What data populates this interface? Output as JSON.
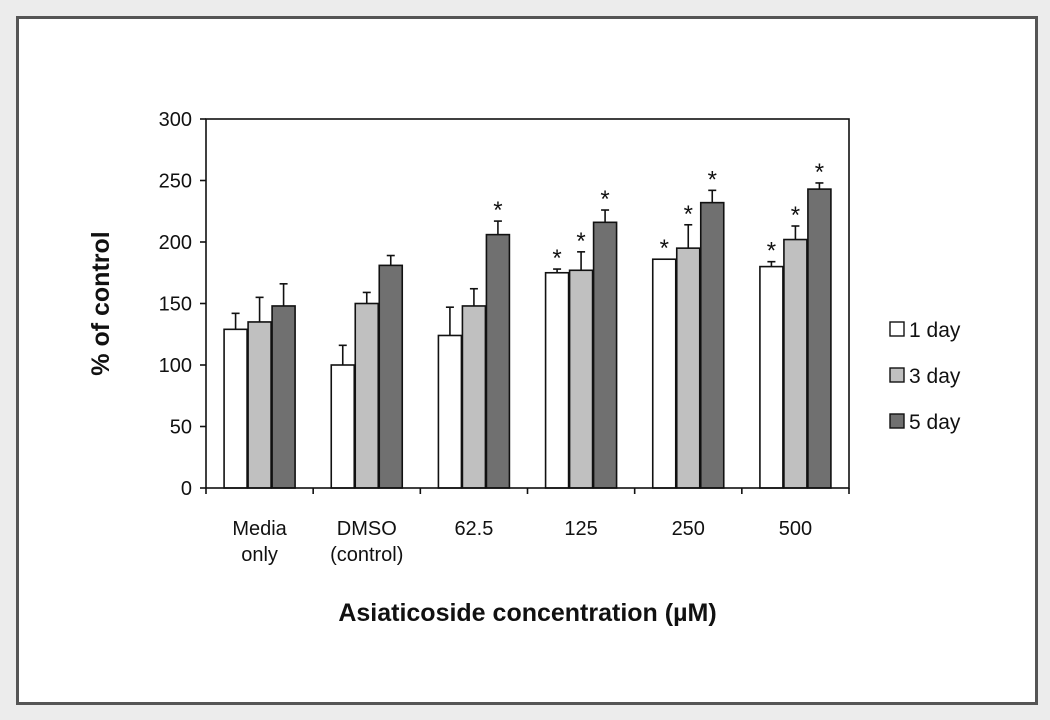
{
  "chart_data": {
    "type": "bar",
    "title": "",
    "xlabel": "Asiaticoside concentration (µM)",
    "ylabel": "% of control",
    "ylim": [
      0,
      300
    ],
    "yticks": [
      0,
      50,
      100,
      150,
      200,
      250,
      300
    ],
    "grid": false,
    "legend_position": "right",
    "categories": [
      [
        "Media",
        "only"
      ],
      [
        "DMSO",
        "(control)"
      ],
      [
        "62.5"
      ],
      [
        "125"
      ],
      [
        "250"
      ],
      [
        "500"
      ]
    ],
    "series": [
      {
        "name": "1 day",
        "color": "#ffffff",
        "values": [
          129,
          100,
          124,
          175,
          186,
          180
        ],
        "errors": [
          13,
          16,
          23,
          3,
          0,
          4
        ],
        "significant": [
          false,
          false,
          false,
          true,
          true,
          true
        ]
      },
      {
        "name": "3 day",
        "color": "#c0c0c0",
        "values": [
          135,
          150,
          148,
          177,
          195,
          202
        ],
        "errors": [
          20,
          9,
          14,
          15,
          19,
          11
        ],
        "significant": [
          false,
          false,
          false,
          true,
          true,
          true
        ]
      },
      {
        "name": "5 day",
        "color": "#707070",
        "values": [
          148,
          181,
          206,
          216,
          232,
          243
        ],
        "errors": [
          18,
          8,
          11,
          10,
          10,
          5
        ],
        "significant": [
          false,
          false,
          true,
          true,
          true,
          true
        ]
      }
    ],
    "significance_marker": "*"
  }
}
